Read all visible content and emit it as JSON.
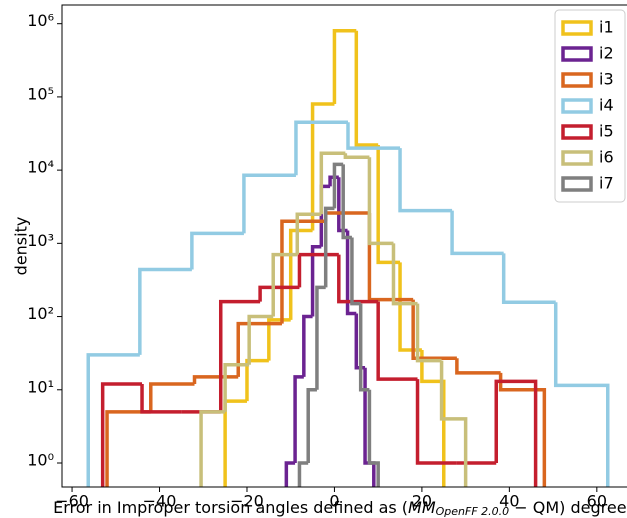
{
  "chart_data": {
    "type": "step-histogram",
    "y_label": "density",
    "x_label": {
      "pre": "Error in Improper torsion angles defined as (",
      "mm": "MM",
      "sub": "OpenFF 2.0.0",
      "post": " − QM) degrees"
    },
    "xlim": [
      -62.3,
      66.9
    ],
    "xticks": [
      {
        "value": -60,
        "label": "−60"
      },
      {
        "value": -40,
        "label": "−40"
      },
      {
        "value": -20,
        "label": "−20"
      },
      0,
      20,
      40,
      60
    ],
    "ylim": [
      0.47,
      1800000
    ],
    "log_y": true,
    "yticks": [
      {
        "value": 1,
        "label": "10⁰"
      },
      {
        "value": 10,
        "label": "10¹"
      },
      {
        "value": 100,
        "label": "10²"
      },
      {
        "value": 1000,
        "label": "10³"
      },
      {
        "value": 10000,
        "label": "10⁴"
      },
      {
        "value": 100000,
        "label": "10⁵"
      },
      {
        "value": 1000000,
        "label": "10⁶"
      }
    ],
    "legend": "upper right",
    "series": [
      {
        "name": "i1",
        "color": "#f0c21c",
        "bins": [
          -25,
          -20,
          -15,
          -10,
          -5,
          0,
          5,
          10,
          15,
          20,
          25
        ],
        "values": [
          7,
          25,
          90,
          1500,
          80000,
          800000,
          22000,
          550,
          35,
          13
        ]
      },
      {
        "name": "i2",
        "color": "#6b2391",
        "bins": [
          -11,
          -9,
          -7,
          -5,
          -3,
          -1,
          1,
          3,
          5,
          7,
          9
        ],
        "values": [
          1,
          15,
          100,
          900,
          6000,
          8000,
          1500,
          110,
          20,
          1
        ]
      },
      {
        "name": "i3",
        "color": "#d9661f",
        "bins": [
          -52,
          -42,
          -32,
          -22,
          -12,
          -2,
          8,
          18,
          28,
          38,
          48
        ],
        "values": [
          5,
          12,
          15,
          80,
          2000,
          2600,
          170,
          27,
          17,
          10
        ]
      },
      {
        "name": "i4",
        "color": "#92cbe3",
        "bins": [
          -56.3,
          -44.5,
          -32.6,
          -20.7,
          -8.8,
          3.1,
          15,
          26.9,
          38.7,
          50.6,
          62.5
        ],
        "values": [
          30,
          440,
          1370,
          8500,
          45000,
          20000,
          2800,
          730,
          157,
          11.5
        ]
      },
      {
        "name": "i5",
        "color": "#c41e2e",
        "bins": [
          -53,
          -44,
          -35,
          -26,
          -17,
          -8,
          1,
          10,
          19,
          28,
          37,
          46
        ],
        "values": [
          12,
          5,
          5,
          160,
          250,
          700,
          160,
          14,
          1,
          1,
          13
        ]
      },
      {
        "name": "i6",
        "color": "#c8bf7a",
        "bins": [
          -30.5,
          -25,
          -19.5,
          -14,
          -8.5,
          -3,
          2.5,
          8,
          13.5,
          19,
          24.5,
          30
        ],
        "values": [
          5,
          22,
          100,
          700,
          2500,
          17000,
          15000,
          1000,
          150,
          25,
          4
        ]
      },
      {
        "name": "i7",
        "color": "#7f7f7f",
        "bins": [
          -8,
          -6,
          -4,
          -2,
          0,
          2,
          4,
          6,
          8,
          10
        ],
        "values": [
          1,
          10,
          250,
          3000,
          12000,
          1200,
          150,
          10,
          1
        ]
      }
    ]
  }
}
